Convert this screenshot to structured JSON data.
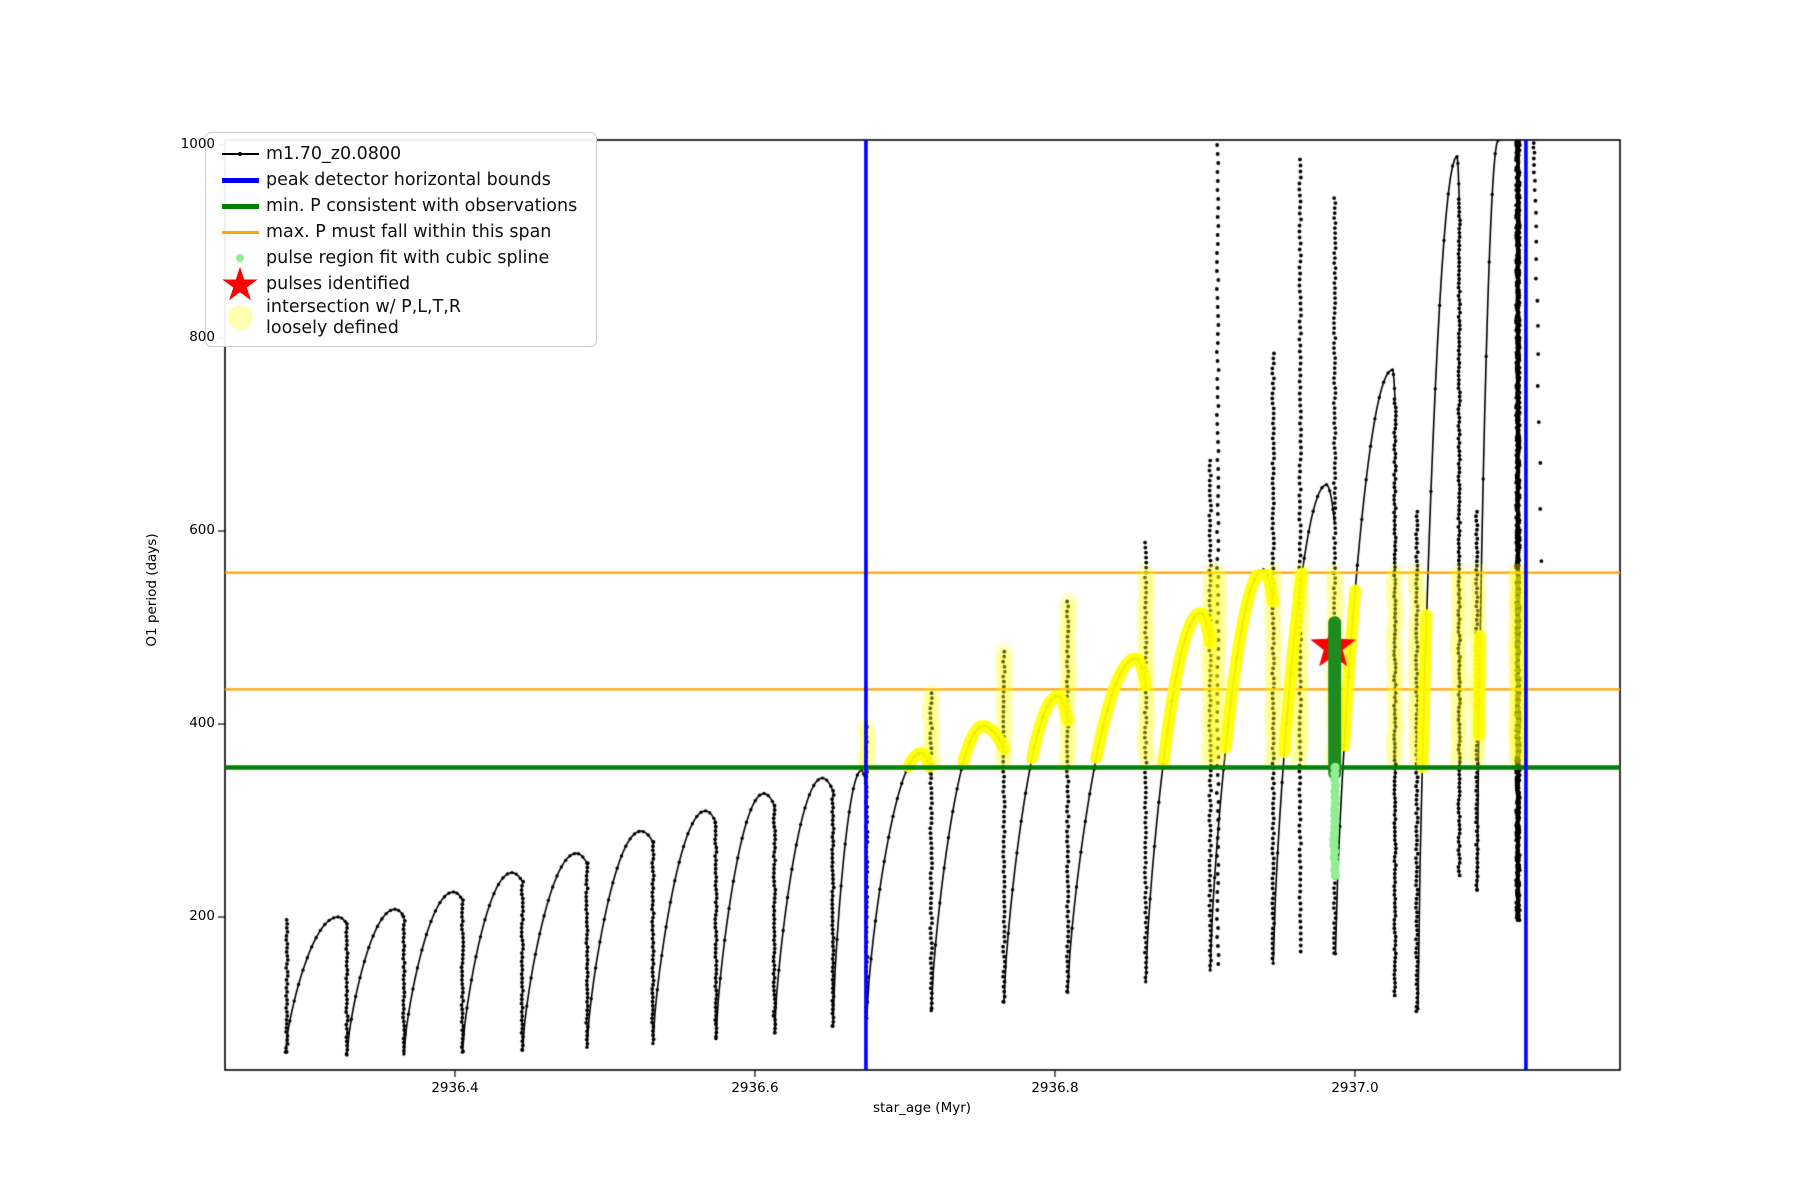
{
  "chart_data": {
    "type": "line",
    "title": "",
    "xlabel": "star_age (Myr)",
    "ylabel": "O1 period (days)",
    "xlim": [
      2936.2467,
      2937.1767
    ],
    "ylim": [
      41.5,
      1005.2
    ],
    "x_ticks": [
      2936.4,
      2936.6,
      2936.8,
      2937.0
    ],
    "x_tick_labels": [
      "2936.4",
      "2936.6",
      "2936.8",
      "2937.0"
    ],
    "y_ticks": [
      200,
      400,
      600,
      800,
      1000
    ],
    "y_tick_labels": [
      "200",
      "400",
      "600",
      "800",
      "1000"
    ],
    "grid": false,
    "legend_position": "upper-left",
    "series_name": "m1.70_z0.0800",
    "peak_detector_bounds_x": [
      2936.674,
      2937.114
    ],
    "min_P_line_y": 355,
    "max_P_span_y": [
      436,
      557
    ],
    "yellow_band_y": [
      355,
      557
    ],
    "pulse_identified_star": {
      "x": 2936.9855,
      "y": 480
    },
    "spline_fit_column": {
      "x": 2936.9865,
      "y_top": 505,
      "y_bottom": 349
    },
    "pulse_region_dots_column": {
      "x": 2936.9865,
      "y_top": 355,
      "y_bottom": 240
    },
    "cycles": [
      {
        "x0": 2936.287,
        "y0": 60,
        "xp": 2936.322,
        "yp": 200,
        "xd": 2936.328,
        "yb": 57
      },
      {
        "x0": 2936.328,
        "y0": 57,
        "xp": 2936.36,
        "yp": 208,
        "xd": 2936.366,
        "yb": 58
      },
      {
        "x0": 2936.366,
        "y0": 58,
        "xp": 2936.399,
        "yp": 226,
        "xd": 2936.405,
        "yb": 60
      },
      {
        "x0": 2936.405,
        "y0": 60,
        "xp": 2936.438,
        "yp": 246,
        "xd": 2936.445,
        "yb": 62
      },
      {
        "x0": 2936.445,
        "y0": 62,
        "xp": 2936.481,
        "yp": 266,
        "xd": 2936.488,
        "yb": 65
      },
      {
        "x0": 2936.488,
        "y0": 65,
        "xp": 2936.524,
        "yp": 289,
        "xd": 2936.532,
        "yb": 69
      },
      {
        "x0": 2936.532,
        "y0": 69,
        "xp": 2936.567,
        "yp": 310,
        "xd": 2936.574,
        "yb": 74
      },
      {
        "x0": 2936.574,
        "y0": 74,
        "xp": 2936.606,
        "yp": 328,
        "xd": 2936.613,
        "yb": 80
      },
      {
        "x0": 2936.613,
        "y0": 80,
        "xp": 2936.645,
        "yp": 344,
        "xd": 2936.652,
        "yb": 87
      },
      {
        "x0": 2936.652,
        "y0": 87,
        "xp": 2936.671,
        "yp": 352,
        "xd": 2936.6745,
        "yb": 95,
        "spike": 397
      },
      {
        "x0": 2936.6745,
        "y0": 95,
        "xp": 2936.711,
        "yp": 370,
        "xd": 2936.7175,
        "yb": 103,
        "spike": 432
      },
      {
        "x0": 2936.7175,
        "y0": 103,
        "xp": 2936.752,
        "yp": 398,
        "xd": 2936.766,
        "yb": 112,
        "spike": 475
      },
      {
        "x0": 2936.766,
        "y0": 112,
        "xp": 2936.802,
        "yp": 429,
        "xd": 2936.8085,
        "yb": 122,
        "spike": 527
      },
      {
        "x0": 2936.8085,
        "y0": 122,
        "xp": 2936.854,
        "yp": 468,
        "xd": 2936.8605,
        "yb": 133,
        "spike": 588
      },
      {
        "x0": 2936.8605,
        "y0": 133,
        "xp": 2936.897,
        "yp": 515,
        "xd": 2936.9035,
        "yb": 145,
        "spike": 673
      },
      {
        "x0": 2936.9035,
        "y0": 145,
        "xp": 2936.939,
        "yp": 560,
        "xd": 2936.9455,
        "yb": 152,
        "spike": 784
      },
      {
        "x0": 2936.9455,
        "y0": 152,
        "xp": 2936.981,
        "yp": 648,
        "xd": 2936.9865,
        "yb": 162,
        "spike": 945
      },
      {
        "x0": 2936.987,
        "y0": 162,
        "xp": 2937.025,
        "yp": 767,
        "xd": 2937.0267,
        "yb": 115
      },
      {
        "x0": 2937.042,
        "y0": 105,
        "xp": 2937.068,
        "yp": 988,
        "xd": 2937.0695,
        "yb": 240
      },
      {
        "x0": 2937.0815,
        "y0": 228,
        "xp": 2937.0955,
        "yp": 1005,
        "clip": true
      }
    ],
    "extra_columns": [
      {
        "x": 2936.288,
        "top": 197,
        "bottom": 57,
        "step": 4,
        "yellow": false
      },
      {
        "x": 2936.9085,
        "top": 1000,
        "bottom": 150,
        "step": 9,
        "yellow": true
      },
      {
        "x": 2936.9635,
        "top": 985,
        "bottom": 160,
        "step": 6,
        "yellow": true
      },
      {
        "x": 2937.0413,
        "top": 620,
        "bottom": 100,
        "step": 4.5,
        "yellow": true
      },
      {
        "x": 2937.0813,
        "top": 620,
        "bottom": 228,
        "step": 4.5,
        "yellow": true
      },
      {
        "x": 2937.108,
        "top": 1005,
        "bottom": 195,
        "step": 2.5,
        "yellow": true,
        "twin": 0.0013
      },
      {
        "x": 2937.1195,
        "top": 1002,
        "bottom": 548,
        "step": 4,
        "grow": 1.13,
        "tiltx": 0.005,
        "yellow": false
      }
    ]
  },
  "legend": {
    "items": [
      {
        "key": "series",
        "marker": "line-dot",
        "color": "#000000",
        "label": "m1.70_z0.0800"
      },
      {
        "key": "peak-bounds",
        "marker": "line",
        "color": "#0000ff",
        "thick": 5,
        "label": "peak detector horizontal bounds"
      },
      {
        "key": "min-p",
        "marker": "line",
        "color": "#008000",
        "thick": 5,
        "label": "min. P consistent with observations"
      },
      {
        "key": "max-p",
        "marker": "line",
        "color": "#ffa500",
        "thick": 3,
        "label": "max. P must fall within this span"
      },
      {
        "key": "pulse-region",
        "marker": "dot",
        "color": "#90ee90",
        "size": 8,
        "label": "pulse region fit with cubic spline"
      },
      {
        "key": "pulses",
        "marker": "star",
        "color": "#ff0000",
        "label": "pulses identified"
      },
      {
        "key": "intersection",
        "marker": "big-dot",
        "color": "rgba(255,255,0,0.30)",
        "size": 25,
        "label": "intersection w/ P,L,T,R\nloosely defined"
      }
    ]
  },
  "colors": {
    "curve": "#000000",
    "peak_bounds": "#0000ff",
    "min_p": "#008000",
    "max_p": "#ffa500",
    "yellow": "#ffff00",
    "spline_column": "#1f8b1f",
    "pulse_region": "#90ee90",
    "star": "#ff0000",
    "background": "#ffffff"
  }
}
